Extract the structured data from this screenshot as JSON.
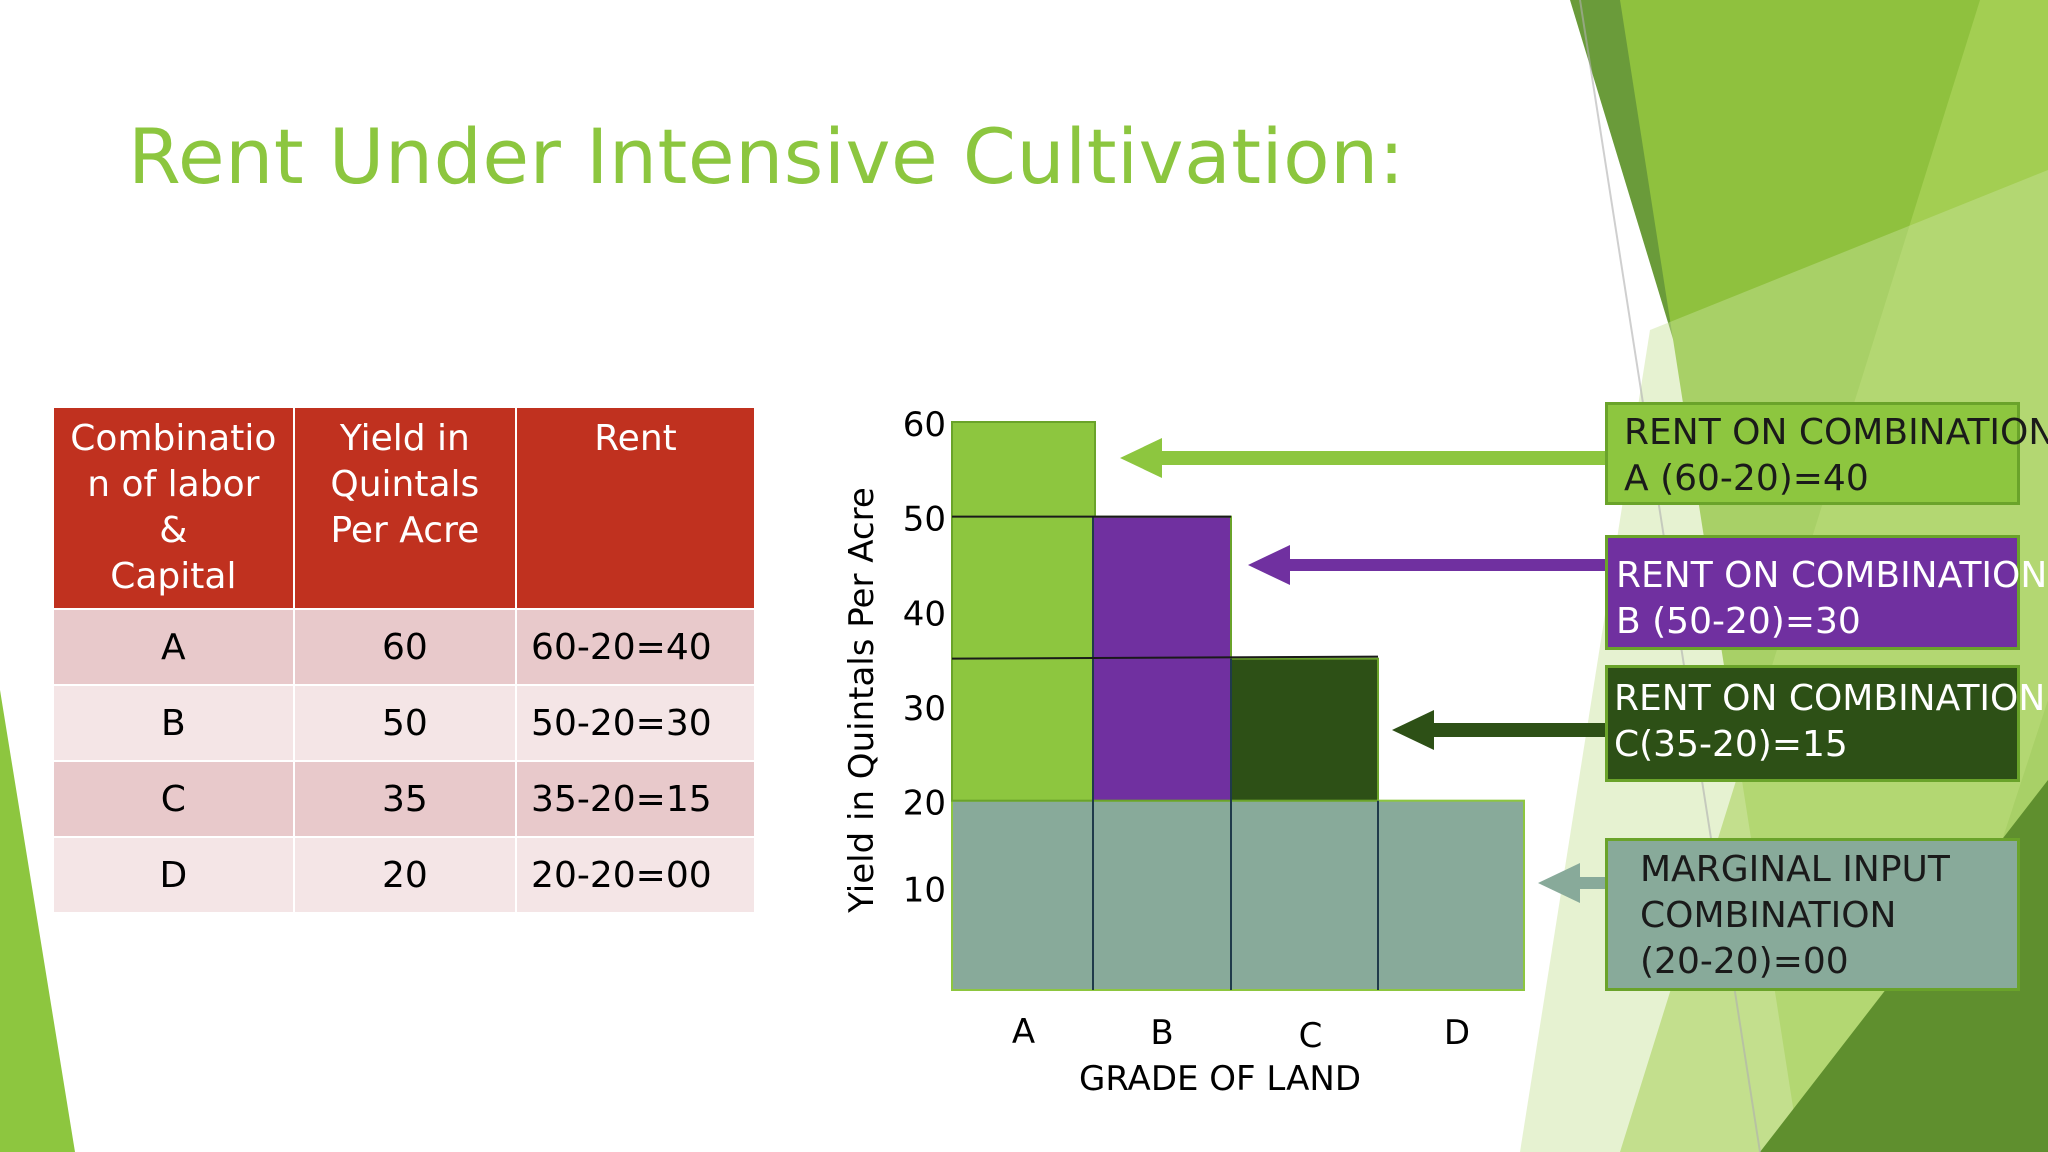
{
  "title": "Rent Under Intensive Cultivation:",
  "colors": {
    "title": "#8cc63f",
    "table_header": "#c0311f",
    "bar_a": "#8dc63f",
    "bar_b": "#7030a0",
    "bar_c": "#2d5016",
    "bar_base": "#88aa9a"
  },
  "table": {
    "headers": [
      "Combinatio n of labor & Capital",
      "Yield in Quintals Per Acre",
      "Rent"
    ],
    "header_lines": [
      [
        "Combinatio",
        "n of labor",
        "&",
        "Capital"
      ],
      [
        "Yield in",
        "Quintals",
        "Per Acre"
      ],
      [
        "Rent"
      ]
    ],
    "rows": [
      {
        "combination": "A",
        "yield": "60",
        "rent": "60-20=40"
      },
      {
        "combination": "B",
        "yield": "50",
        "rent": "50-20=30"
      },
      {
        "combination": "C",
        "yield": "35",
        "rent": "35-20=15"
      },
      {
        "combination": "D",
        "yield": "20",
        "rent": "20-20=00"
      }
    ]
  },
  "chart_data": {
    "type": "bar",
    "categories": [
      "A",
      "B",
      "C",
      "D"
    ],
    "values": [
      60,
      50,
      35,
      20
    ],
    "marginal_yield": 20,
    "ylim": [
      0,
      60
    ],
    "yticks": [
      10,
      20,
      30,
      40,
      50,
      60
    ],
    "xlabel": "GRADE OF LAND",
    "ylabel": "Yield in Quintals Per Acre",
    "annotations": [
      {
        "lines": [
          "RENT ON COMBINATION",
          "A (60-20)=40"
        ],
        "points_to": "A"
      },
      {
        "lines": [
          "RENT ON COMBINATION",
          "B (50-20)=30"
        ],
        "points_to": "B"
      },
      {
        "lines": [
          "RENT ON COMBINATION",
          "C(35-20)=15"
        ],
        "points_to": "C"
      },
      {
        "lines": [
          "MARGINAL INPUT",
          "COMBINATION",
          "(20-20)=00"
        ],
        "points_to": "D"
      }
    ]
  }
}
